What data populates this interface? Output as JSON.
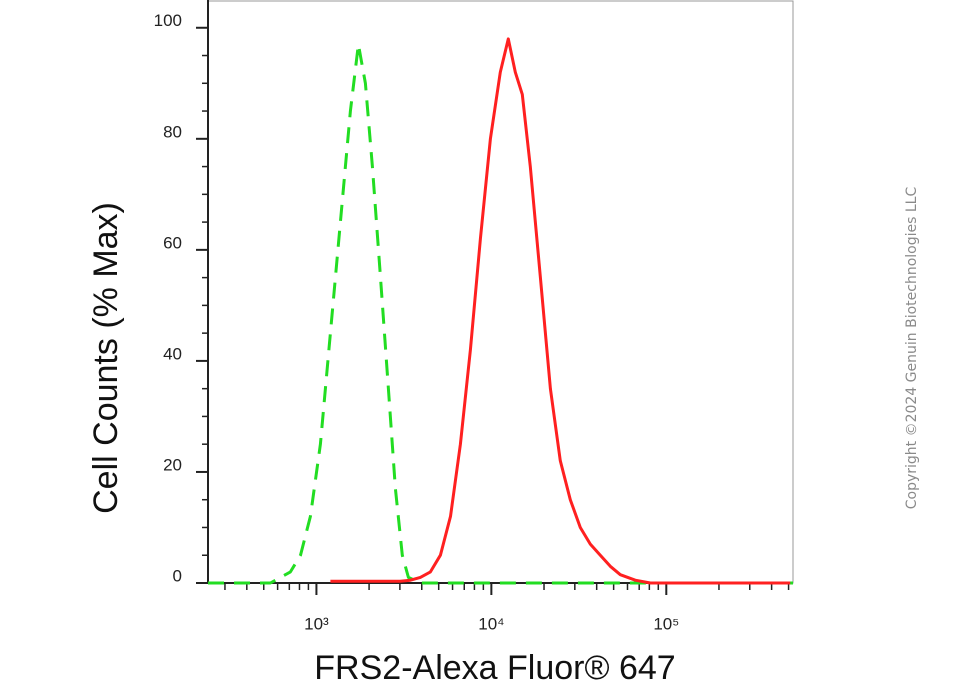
{
  "chart_data": {
    "type": "line",
    "x_label": "FRS2-Alexa Fluor® 647",
    "y_label": "Cell Counts (% Max)",
    "watermark": "Copyright ©2024 Genuin Biotechnologies LLC",
    "xscale": "log",
    "xlim": [
      240,
      530000
    ],
    "ylim": [
      0,
      105
    ],
    "xticks": [
      {
        "value": 1000,
        "label": "10³"
      },
      {
        "value": 10000,
        "label": "10⁴"
      },
      {
        "value": 100000,
        "label": "10⁵"
      }
    ],
    "xminorticks": [
      300,
      400,
      500,
      600,
      700,
      800,
      900,
      2000,
      3000,
      4000,
      5000,
      6000,
      7000,
      8000,
      9000,
      20000,
      30000,
      40000,
      50000,
      60000,
      70000,
      80000,
      90000,
      200000,
      300000,
      400000,
      500000
    ],
    "yticks": [
      0,
      20,
      40,
      60,
      80,
      100
    ],
    "yminorticks": [
      5,
      10,
      15,
      25,
      30,
      35,
      45,
      50,
      55,
      65,
      70,
      75,
      85,
      90,
      95
    ],
    "series": [
      {
        "color": "#22dd22",
        "dash": true,
        "x": [
          240,
          546,
          710,
          811,
          924,
          1054,
          1202,
          1371,
          1563,
          1738,
          1906,
          2089,
          2323,
          2578,
          2827,
          3097,
          3356,
          3927,
          530000
        ],
        "values": [
          0,
          0,
          2,
          5,
          12,
          25,
          45,
          65,
          85,
          97,
          90,
          75,
          55,
          35,
          17,
          5,
          1,
          0,
          0
        ]
      },
      {
        "color": "#ff2020",
        "dash": false,
        "x": [
          1202,
          3017,
          3443,
          3927,
          4482,
          5116,
          5840,
          6655,
          7590,
          8660,
          9870,
          11250,
          12500,
          13710,
          15030,
          16700,
          19060,
          21740,
          24790,
          28270,
          32260,
          36800,
          41970,
          47870,
          54590,
          66510,
          81100,
          511000
        ],
        "values": [
          0.3,
          0.3,
          0.5,
          1,
          2,
          5,
          12,
          25,
          42,
          62,
          80,
          92,
          98,
          92,
          88,
          75,
          55,
          35,
          22,
          15,
          10,
          7,
          5,
          3,
          1.5,
          0.5,
          0,
          0
        ]
      }
    ]
  }
}
